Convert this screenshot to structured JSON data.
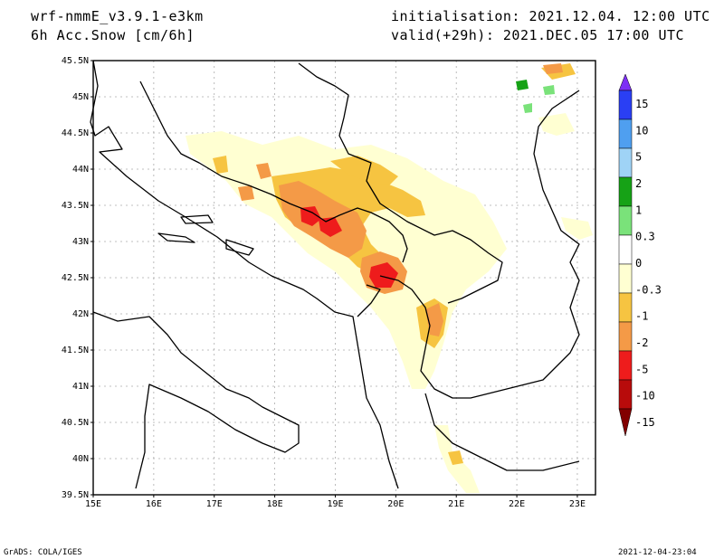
{
  "header": {
    "model": "wrf-nmmE_v3.9.1-e3km",
    "variable": "6h Acc.Snow [cm/6h]",
    "initialisation": "initialisation: 2021.12.04.  12:00 UTC",
    "valid": "valid(+29h): 2021.DEC.05 17:00 UTC"
  },
  "axes": {
    "lat_labels": [
      "45.5N",
      "45N",
      "44.5N",
      "44N",
      "43.5N",
      "43N",
      "42.5N",
      "42N",
      "41.5N",
      "41N",
      "40.5N",
      "40N",
      "39.5N"
    ],
    "lon_labels": [
      "15E",
      "16E",
      "17E",
      "18E",
      "19E",
      "20E",
      "21E",
      "22E",
      "23E"
    ]
  },
  "legend": {
    "labels": [
      "15",
      "10",
      "5",
      "2",
      "1",
      "0.3",
      "0",
      "-0.3",
      "-1",
      "-2",
      "-5",
      "-10",
      "-15"
    ],
    "colors": [
      "#7d2ff5",
      "#2a3ff4",
      "#4f9ff0",
      "#9fd3f6",
      "#16a216",
      "#7ae27a",
      "#ffffff",
      "#ffffd2",
      "#f6c441",
      "#f49a47",
      "#ee1c1c",
      "#b80b0b",
      "#820000"
    ]
  },
  "footer": {
    "left": "GrADS: COLA/IGES",
    "right": "2021-12-04-23:04"
  }
}
